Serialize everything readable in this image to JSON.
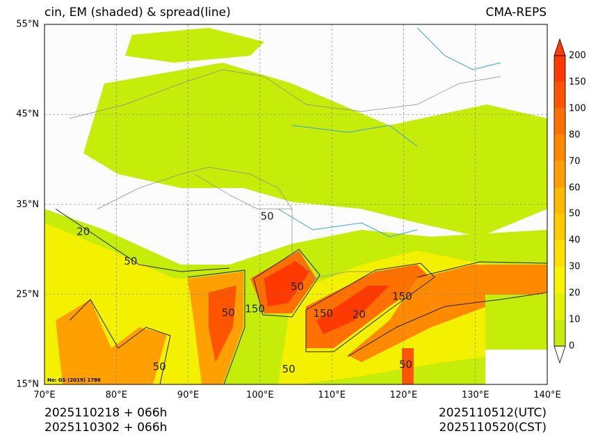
{
  "title": {
    "left": "cin, EM (shaded) & spread(line)",
    "right": "CMA-REPS"
  },
  "axes": {
    "lat_ticks": [
      "55°N",
      "45°N",
      "35°N",
      "25°N",
      "15°N"
    ],
    "lon_ticks": [
      "70°E",
      "80°E",
      "90°E",
      "100°E",
      "110°E",
      "120°E",
      "130°E",
      "140°E"
    ],
    "lat_range": [
      15,
      55
    ],
    "lon_range": [
      70,
      140
    ]
  },
  "colorbar": {
    "labels": [
      "0",
      "10",
      "20",
      "30",
      "40",
      "50",
      "60",
      "70",
      "80",
      "100",
      "150",
      "200"
    ],
    "colors": [
      "#c6ec0a",
      "#e3f006",
      "#f9f200",
      "#ffe000",
      "#ffcc00",
      "#ffb800",
      "#ffa000",
      "#ff8a00",
      "#ff7000",
      "#ff5500",
      "#ff3a00"
    ],
    "max_arrow_color": "#ff3a00"
  },
  "contour_labels": [
    {
      "text": "50",
      "lon": 101,
      "lat": 33.3
    },
    {
      "text": "150",
      "lon": 99.3,
      "lat": 23.0
    },
    {
      "text": "150",
      "lon": 108.8,
      "lat": 22.5
    },
    {
      "text": "20",
      "lon": 113.8,
      "lat": 22.4
    },
    {
      "text": "150",
      "lon": 119.8,
      "lat": 24.4
    },
    {
      "text": "50",
      "lon": 86.0,
      "lat": 16.6
    },
    {
      "text": "50",
      "lon": 104.0,
      "lat": 16.3
    },
    {
      "text": "50",
      "lon": 120.3,
      "lat": 16.8
    },
    {
      "text": "50",
      "lon": 82.0,
      "lat": 28.3
    },
    {
      "text": "20",
      "lon": 75.4,
      "lat": 31.6
    },
    {
      "text": "50",
      "lon": 95.6,
      "lat": 22.6
    },
    {
      "text": "50",
      "lon": 105.2,
      "lat": 25.5
    }
  ],
  "watermark": "No: GS (2019) 1786",
  "times": {
    "left_line1": "2025110218  +  066h",
    "left_line2": "2025110302  +  066h",
    "right_line1": "2025110512(UTC)",
    "right_line2": "2025110520(CST)"
  }
}
